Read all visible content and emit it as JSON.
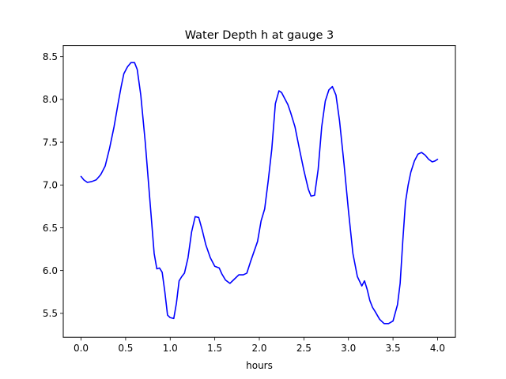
{
  "chart_data": {
    "type": "line",
    "title": "Water Depth h at gauge 3",
    "xlabel": "hours",
    "ylabel": "",
    "xlim": [
      -0.2,
      4.2
    ],
    "ylim": [
      5.22,
      8.63
    ],
    "xticks": [
      0.0,
      0.5,
      1.0,
      1.5,
      2.0,
      2.5,
      3.0,
      3.5,
      4.0
    ],
    "xtick_labels": [
      "0.0",
      "0.5",
      "1.0",
      "1.5",
      "2.0",
      "2.5",
      "3.0",
      "3.5",
      "4.0"
    ],
    "yticks": [
      5.5,
      6.0,
      6.5,
      7.0,
      7.5,
      8.0,
      8.5
    ],
    "ytick_labels": [
      "5.5",
      "6.0",
      "6.5",
      "7.0",
      "7.5",
      "8.0",
      "8.5"
    ],
    "grid": false,
    "series": [
      {
        "color": "#0000ff",
        "x": [
          0.0,
          0.03,
          0.07,
          0.12,
          0.17,
          0.22,
          0.27,
          0.32,
          0.37,
          0.42,
          0.45,
          0.48,
          0.52,
          0.56,
          0.6,
          0.63,
          0.67,
          0.72,
          0.77,
          0.82,
          0.85,
          0.88,
          0.91,
          0.94,
          0.97,
          1.0,
          1.04,
          1.07,
          1.1,
          1.13,
          1.16,
          1.2,
          1.24,
          1.28,
          1.32,
          1.36,
          1.4,
          1.45,
          1.5,
          1.55,
          1.58,
          1.62,
          1.67,
          1.72,
          1.77,
          1.82,
          1.86,
          1.9,
          1.94,
          1.98,
          2.02,
          2.06,
          2.1,
          2.14,
          2.18,
          2.22,
          2.25,
          2.28,
          2.32,
          2.35,
          2.4,
          2.45,
          2.5,
          2.55,
          2.58,
          2.62,
          2.66,
          2.7,
          2.74,
          2.78,
          2.82,
          2.86,
          2.9,
          2.95,
          3.0,
          3.05,
          3.1,
          3.15,
          3.18,
          3.21,
          3.24,
          3.27,
          3.3,
          3.35,
          3.4,
          3.45,
          3.5,
          3.55,
          3.58,
          3.61,
          3.64,
          3.67,
          3.7,
          3.74,
          3.78,
          3.82,
          3.86,
          3.9,
          3.94,
          3.97,
          4.0
        ],
        "y": [
          7.1,
          7.06,
          7.03,
          7.04,
          7.06,
          7.12,
          7.22,
          7.43,
          7.68,
          7.98,
          8.15,
          8.3,
          8.38,
          8.43,
          8.43,
          8.35,
          8.05,
          7.5,
          6.85,
          6.2,
          6.02,
          6.03,
          5.98,
          5.75,
          5.48,
          5.45,
          5.44,
          5.62,
          5.88,
          5.93,
          5.97,
          6.15,
          6.45,
          6.63,
          6.62,
          6.47,
          6.3,
          6.15,
          6.05,
          6.03,
          5.96,
          5.89,
          5.85,
          5.9,
          5.95,
          5.95,
          5.97,
          6.1,
          6.22,
          6.34,
          6.58,
          6.72,
          7.05,
          7.42,
          7.95,
          8.1,
          8.08,
          8.02,
          7.94,
          7.85,
          7.68,
          7.42,
          7.17,
          6.95,
          6.87,
          6.88,
          7.18,
          7.68,
          7.98,
          8.11,
          8.15,
          8.05,
          7.75,
          7.25,
          6.7,
          6.2,
          5.93,
          5.82,
          5.88,
          5.78,
          5.65,
          5.57,
          5.52,
          5.43,
          5.38,
          5.38,
          5.41,
          5.6,
          5.85,
          6.35,
          6.8,
          7.0,
          7.15,
          7.28,
          7.36,
          7.38,
          7.35,
          7.3,
          7.27,
          7.28,
          7.3
        ]
      }
    ]
  }
}
